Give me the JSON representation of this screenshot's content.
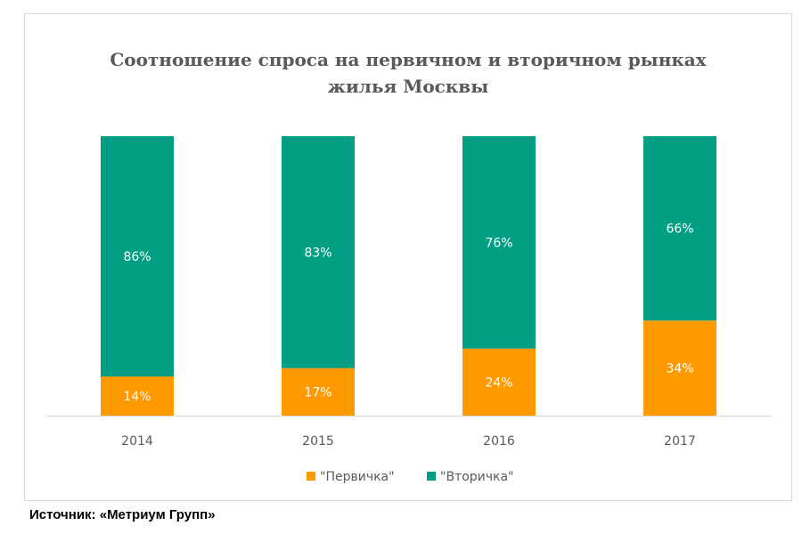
{
  "chart_data": {
    "type": "bar",
    "stacked": true,
    "title_lines": [
      "Соотношение спроса на первичном и вторичном рынках",
      "жилья Москвы"
    ],
    "categories": [
      "2014",
      "2015",
      "2016",
      "2017"
    ],
    "series": [
      {
        "name": "\"Первичка\"",
        "values": [
          14,
          17,
          24,
          34
        ],
        "labels": [
          "14%",
          "17%",
          "24%",
          "34%"
        ],
        "color": "#ff9900"
      },
      {
        "name": "\"Вторичка\"",
        "values": [
          86,
          83,
          76,
          66
        ],
        "labels": [
          "86%",
          "83%",
          "76%",
          "66%"
        ],
        "color": "#009e83"
      }
    ],
    "ylim": [
      0,
      100
    ],
    "grid": false,
    "legend": "bottom"
  },
  "source": "Источник: «Метриум Групп»"
}
